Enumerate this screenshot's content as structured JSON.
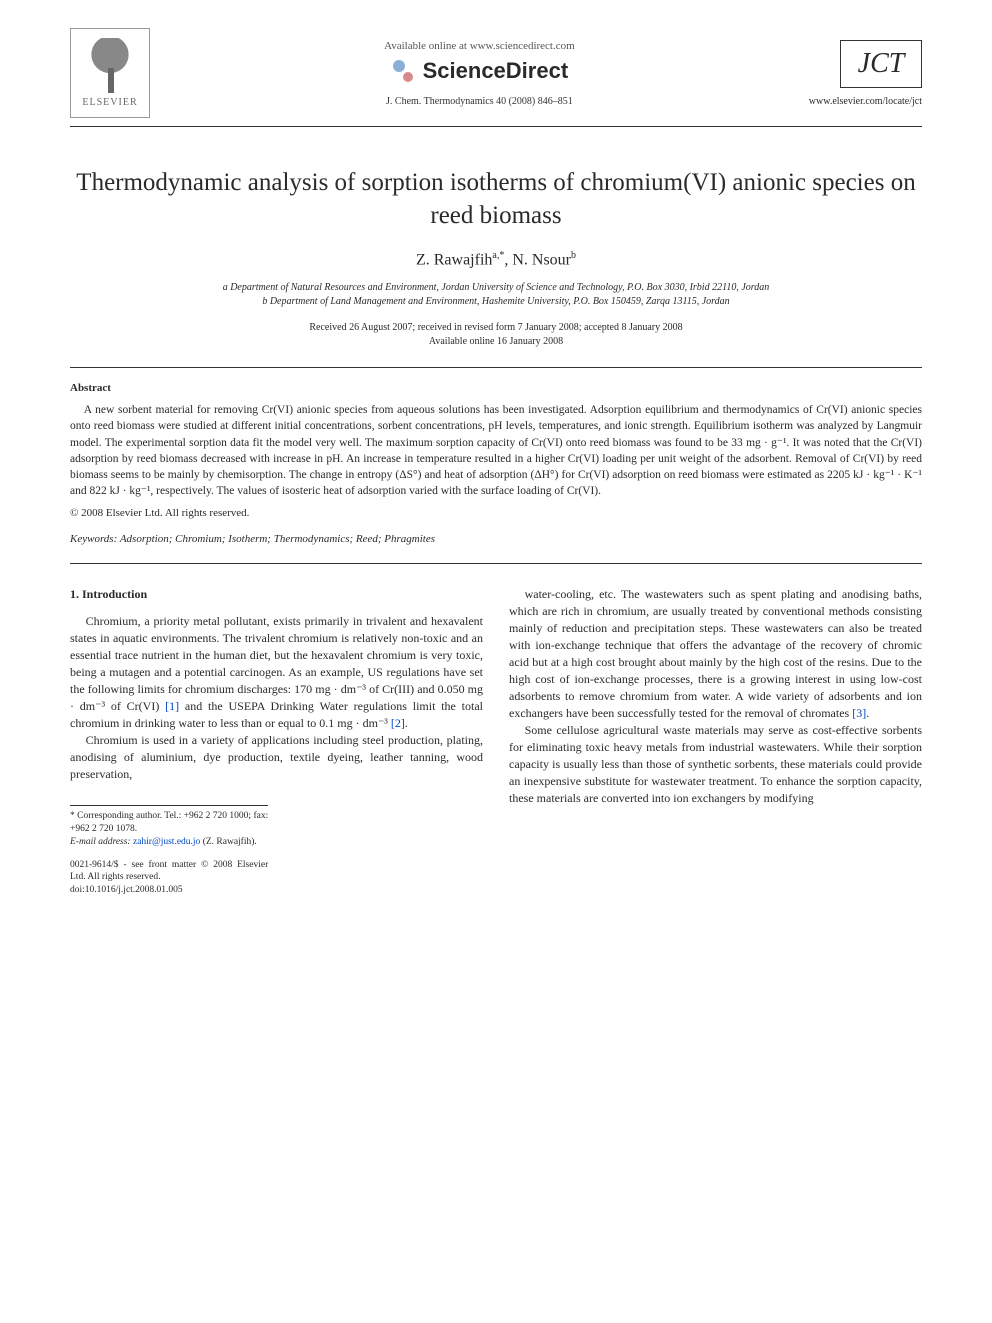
{
  "header": {
    "elsevier_label": "ELSEVIER",
    "available_online": "Available online at www.sciencedirect.com",
    "sciencedirect_label": "ScienceDirect",
    "journal_citation": "J. Chem. Thermodynamics 40 (2008) 846–851",
    "jct_logo": "JCT",
    "jct_url": "www.elsevier.com/locate/jct"
  },
  "article": {
    "title": "Thermodynamic analysis of sorption isotherms of chromium(VI) anionic species on reed biomass",
    "authors_html": "Z. Rawajfih ",
    "author1": "Z. Rawajfih",
    "author1_sup": "a,*",
    "author2": "N. Nsour",
    "author2_sup": "b",
    "affiliation_a": "a Department of Natural Resources and Environment, Jordan University of Science and Technology, P.O. Box 3030, Irbid 22110, Jordan",
    "affiliation_b": "b Department of Land Management and Environment, Hashemite University, P.O. Box 150459, Zarqa 13115, Jordan",
    "received_line": "Received 26 August 2007; received in revised form 7 January 2008; accepted 8 January 2008",
    "available_line": "Available online 16 January 2008"
  },
  "abstract": {
    "heading": "Abstract",
    "body": "A new sorbent material for removing Cr(VI) anionic species from aqueous solutions has been investigated. Adsorption equilibrium and thermodynamics of Cr(VI) anionic species onto reed biomass were studied at different initial concentrations, sorbent concentrations, pH levels, temperatures, and ionic strength. Equilibrium isotherm was analyzed by Langmuir model. The experimental sorption data fit the model very well. The maximum sorption capacity of Cr(VI) onto reed biomass was found to be 33 mg · g⁻¹. It was noted that the Cr(VI) adsorption by reed biomass decreased with increase in pH. An increase in temperature resulted in a higher Cr(VI) loading per unit weight of the adsorbent. Removal of Cr(VI) by reed biomass seems to be mainly by chemisorption. The change in entropy (ΔS°) and heat of adsorption (ΔH°) for Cr(VI) adsorption on reed biomass were estimated as 2205 kJ · kg⁻¹ · K⁻¹ and 822 kJ · kg⁻¹, respectively. The values of isosteric heat of adsorption varied with the surface loading of Cr(VI).",
    "copyright": "© 2008 Elsevier Ltd. All rights reserved."
  },
  "keywords_label": "Keywords:",
  "keywords_value": " Adsorption; Chromium; Isotherm; Thermodynamics; Reed; Phragmites",
  "section1": {
    "heading": "1. Introduction",
    "p1": "Chromium, a priority metal pollutant, exists primarily in trivalent and hexavalent states in aquatic environments. The trivalent chromium is relatively non-toxic and an essential trace nutrient in the human diet, but the hexavalent chromium is very toxic, being a mutagen and a potential carcinogen. As an example, US regulations have set the following limits for chromium discharges: 170 mg · dm⁻³ of Cr(III) and 0.050 mg · dm⁻³ of Cr(VI) ",
    "ref1": "[1]",
    "p1b": " and the USEPA Drinking Water regulations limit the total chromium in drinking water to less than or equal to 0.1 mg · dm⁻³ ",
    "ref2": "[2]",
    "p1c": ".",
    "p2": "Chromium is used in a variety of applications including steel production, plating, anodising of aluminium, dye production, textile dyeing, leather tanning, wood preservation,",
    "p3a": "water-cooling, etc. The wastewaters such as spent plating and anodising baths, which are rich in chromium, are usually treated by conventional methods consisting mainly of reduction and precipitation steps. These wastewaters can also be treated with ion-exchange technique that offers the advantage of the recovery of chromic acid but at a high cost brought about mainly by the high cost of the resins. Due to the high cost of ion-exchange processes, there is a growing interest in using low-cost adsorbents to remove chromium from water. A wide variety of adsorbents and ion exchangers have been successfully tested for the removal of chromates ",
    "ref3": "[3]",
    "p3b": ".",
    "p4": "Some cellulose agricultural waste materials may serve as cost-effective sorbents for eliminating toxic heavy metals from industrial wastewaters. While their sorption capacity is usually less than those of synthetic sorbents, these materials could provide an inexpensive substitute for wastewater treatment. To enhance the sorption capacity, these materials are converted into ion exchangers by modifying"
  },
  "footnotes": {
    "corresponding": "* Corresponding author. Tel.: +962 2 720 1000; fax: +962 2 720 1078.",
    "email_label": "E-mail address:",
    "email": "zahir@just.edu.jo",
    "email_suffix": " (Z. Rawajfih).",
    "front_matter": "0021-9614/$ - see front matter © 2008 Elsevier Ltd. All rights reserved.",
    "doi": "doi:10.1016/j.jct.2008.01.005"
  },
  "colors": {
    "text": "#2a2a2a",
    "link": "#0047c2",
    "rule": "#333333"
  },
  "typography": {
    "title_fontsize_pt": 19,
    "body_fontsize_pt": 9,
    "abstract_fontsize_pt": 8.5,
    "font_family": "Times New Roman / Georgia serif"
  }
}
